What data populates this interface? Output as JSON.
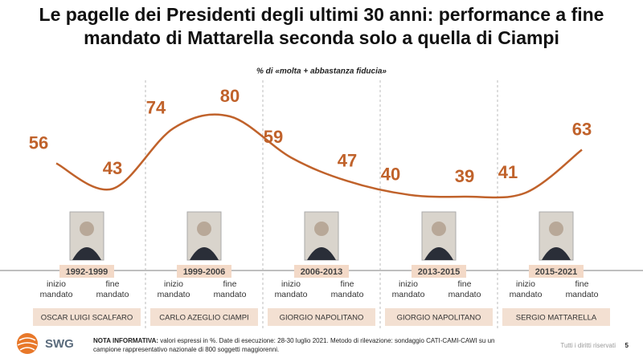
{
  "title": "Le pagelle dei Presidenti degli ultimi 30 anni: performance a fine mandato di Mattarella seconda solo a quella di Ciampi",
  "chart_data": {
    "type": "line",
    "subtitle": "% di «molta + abbastanza fiducia»",
    "color": "#c0622b",
    "categories": [
      "inizio mandato",
      "fine mandato",
      "inizio mandato",
      "fine mandato",
      "inizio mandato",
      "fine mandato",
      "inizio mandato",
      "fine mandato",
      "inizio mandato",
      "fine mandato"
    ],
    "values": [
      56,
      43,
      74,
      80,
      59,
      47,
      40,
      39,
      41,
      63
    ],
    "groups": [
      {
        "period": "1992-1999",
        "name": "OSCAR LUIGI SCALFARO"
      },
      {
        "period": "1999-2006",
        "name": "CARLO AZEGLIO CIAMPI"
      },
      {
        "period": "2006-2013",
        "name": "GIORGIO NAPOLITANO"
      },
      {
        "period": "2013-2015",
        "name": "GIORGIO NAPOLITANO"
      },
      {
        "period": "2015-2021",
        "name": "SERGIO MATTARELLA"
      }
    ]
  },
  "footer": {
    "note_label": "NOTA INFORMATIVA:",
    "note": "valori espressi in %. Date di esecuzione: 28-30 luglio 2021. Metodo di rilevazione: sondaggio CATI-CAMI-CAWI su un campione rappresentativo nazionale di 800 soggetti maggiorenni.",
    "logo": "SWG",
    "rights": "Tutti i diritti riservati",
    "page": "5"
  }
}
